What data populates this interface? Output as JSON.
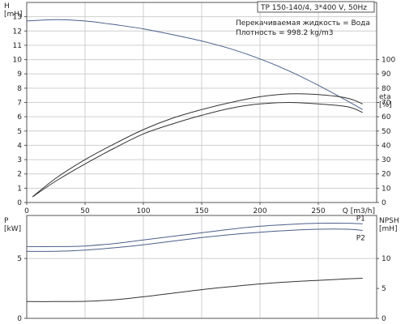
{
  "chart_data": [
    {
      "type": "line",
      "title": "TP 150-140/4, 3*400 V, 50Hz",
      "annotations": [
        "Перекачиваемая жидкость = Вода",
        "Плотность = 998.2 kg/m3"
      ],
      "xlabel": "Q [m3/h]",
      "xlim": [
        0,
        300
      ],
      "xticks": [
        0,
        50,
        100,
        150,
        200,
        250
      ],
      "y_left": {
        "label_line1": "H",
        "label_line2": "[mH]",
        "lim": [
          0,
          14
        ],
        "ticks": [
          0,
          1,
          2,
          3,
          4,
          5,
          6,
          7,
          8,
          9,
          10,
          11,
          12,
          13
        ]
      },
      "y_right": {
        "label_line1": "eta",
        "label_line2": "[%]",
        "lim": [
          0,
          140
        ],
        "ticks": [
          0,
          10,
          20,
          30,
          40,
          50,
          60,
          70,
          80,
          90,
          100
        ]
      },
      "grid": true,
      "series": [
        {
          "axis": "left",
          "color": "#4a5f8a",
          "x": [
            0,
            25,
            50,
            75,
            100,
            125,
            150,
            175,
            200,
            225,
            250,
            275,
            288
          ],
          "y": [
            12.7,
            12.8,
            12.7,
            12.45,
            12.15,
            11.75,
            11.3,
            10.75,
            10.05,
            9.2,
            8.2,
            7.1,
            6.5
          ]
        },
        {
          "axis": "right",
          "color": "#333333",
          "x": [
            5,
            25,
            50,
            75,
            100,
            125,
            150,
            175,
            200,
            225,
            250,
            275,
            288
          ],
          "y": [
            4,
            17,
            30,
            41,
            51,
            59,
            65,
            70,
            74,
            76,
            75.5,
            73,
            69
          ]
        },
        {
          "axis": "right",
          "color": "#333333",
          "x": [
            5,
            25,
            50,
            75,
            100,
            125,
            150,
            175,
            200,
            225,
            250,
            275,
            288
          ],
          "y": [
            4,
            15,
            27,
            38,
            48,
            55,
            61,
            66,
            69,
            70,
            69,
            67,
            63
          ]
        }
      ]
    },
    {
      "type": "line",
      "xlim": [
        0,
        300
      ],
      "xticks": [
        0,
        50,
        100,
        150,
        200,
        250
      ],
      "y_left": {
        "label_line1": "P",
        "label_line2": "[kW]",
        "lim": [
          0,
          8.6
        ],
        "ticks": [
          0,
          5
        ]
      },
      "y_right": {
        "label_line1": "NPSH",
        "label_line2": "[mH]",
        "lim": [
          0,
          17.2
        ],
        "ticks": [
          0,
          5,
          10
        ]
      },
      "grid": true,
      "series": [
        {
          "name": "P1",
          "axis": "left",
          "color": "#4a5f8a",
          "x": [
            0,
            25,
            50,
            75,
            100,
            125,
            150,
            175,
            200,
            225,
            250,
            275,
            288
          ],
          "y": [
            6.0,
            6.0,
            6.05,
            6.25,
            6.55,
            6.85,
            7.15,
            7.45,
            7.7,
            7.85,
            7.95,
            7.95,
            7.9
          ]
        },
        {
          "name": "P2",
          "axis": "left",
          "color": "#4a5f8a",
          "x": [
            0,
            25,
            50,
            75,
            100,
            125,
            150,
            175,
            200,
            225,
            250,
            275,
            288
          ],
          "y": [
            5.6,
            5.6,
            5.7,
            5.9,
            6.15,
            6.45,
            6.75,
            7.0,
            7.2,
            7.35,
            7.45,
            7.45,
            7.35
          ]
        },
        {
          "axis": "right",
          "color": "#333333",
          "x": [
            0,
            25,
            50,
            75,
            100,
            125,
            150,
            175,
            200,
            225,
            250,
            275,
            288
          ],
          "y": [
            2.8,
            2.8,
            2.85,
            3.1,
            3.6,
            4.2,
            4.8,
            5.3,
            5.75,
            6.1,
            6.35,
            6.6,
            6.7
          ]
        }
      ]
    }
  ]
}
